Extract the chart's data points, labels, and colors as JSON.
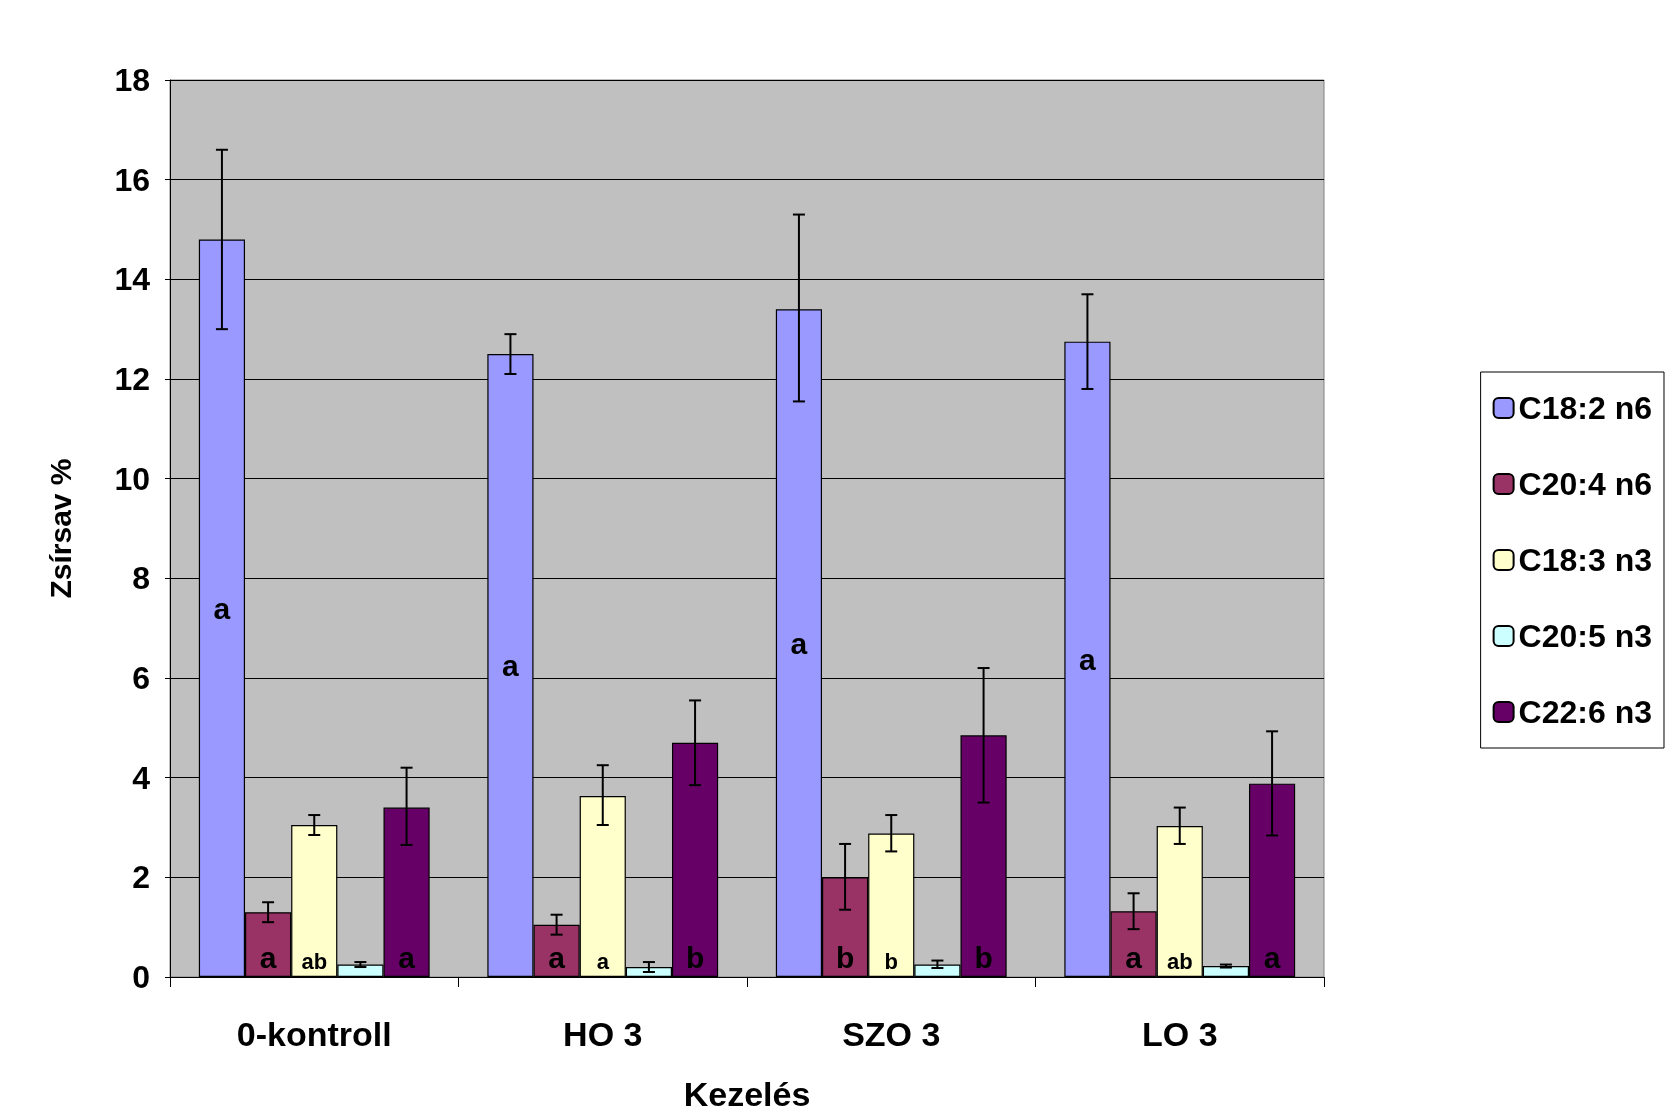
{
  "chart_data": {
    "type": "bar",
    "xlabel": "Kezelés",
    "ylabel": "Zsírsav %",
    "categories": [
      "0-kontroll",
      "HO 3",
      "SZO 3",
      "LO 3"
    ],
    "ylim": [
      0,
      18
    ],
    "yticks": [
      0,
      2,
      4,
      6,
      8,
      10,
      12,
      14,
      16,
      18
    ],
    "grid": "y",
    "legend": "right",
    "series": [
      {
        "name": "C18:2 n6",
        "color": "#9999ff",
        "values": [
          14.8,
          12.5,
          13.4,
          12.75
        ],
        "errors": [
          [
            13.0,
            16.6
          ],
          [
            12.1,
            12.9
          ],
          [
            11.55,
            15.3
          ],
          [
            11.8,
            13.7
          ]
        ],
        "value_labels": [
          "a",
          "a",
          "a",
          "a"
        ]
      },
      {
        "name": "C20:4 n6",
        "color": "#993366",
        "values": [
          1.3,
          1.05,
          2.0,
          1.32
        ],
        "errors": [
          [
            1.1,
            1.5
          ],
          [
            0.85,
            1.25
          ],
          [
            1.35,
            2.67
          ],
          [
            0.96,
            1.68
          ]
        ],
        "value_labels": [
          "a",
          "a",
          "b",
          "a"
        ]
      },
      {
        "name": "C18:3 n3",
        "color": "#ffffcc",
        "values": [
          3.05,
          3.63,
          2.88,
          3.03
        ],
        "errors": [
          [
            2.85,
            3.25
          ],
          [
            3.05,
            4.25
          ],
          [
            2.52,
            3.25
          ],
          [
            2.67,
            3.4
          ]
        ],
        "value_labels": [
          "ab",
          "a",
          "b",
          "ab"
        ]
      },
      {
        "name": "C20:5 n3",
        "color": "#ccffff",
        "values": [
          0.25,
          0.2,
          0.25,
          0.22
        ],
        "errors": [
          [
            0.2,
            0.3
          ],
          [
            0.1,
            0.3
          ],
          [
            0.18,
            0.33
          ],
          [
            0.19,
            0.25
          ]
        ]
      },
      {
        "name": "C22:6 n3",
        "color": "#660066",
        "values": [
          3.4,
          4.7,
          4.85,
          3.88
        ],
        "errors": [
          [
            2.65,
            4.2
          ],
          [
            3.85,
            5.55
          ],
          [
            3.5,
            6.2
          ],
          [
            2.84,
            4.93
          ]
        ],
        "value_labels": [
          "a",
          "b",
          "b",
          "a"
        ]
      }
    ]
  }
}
